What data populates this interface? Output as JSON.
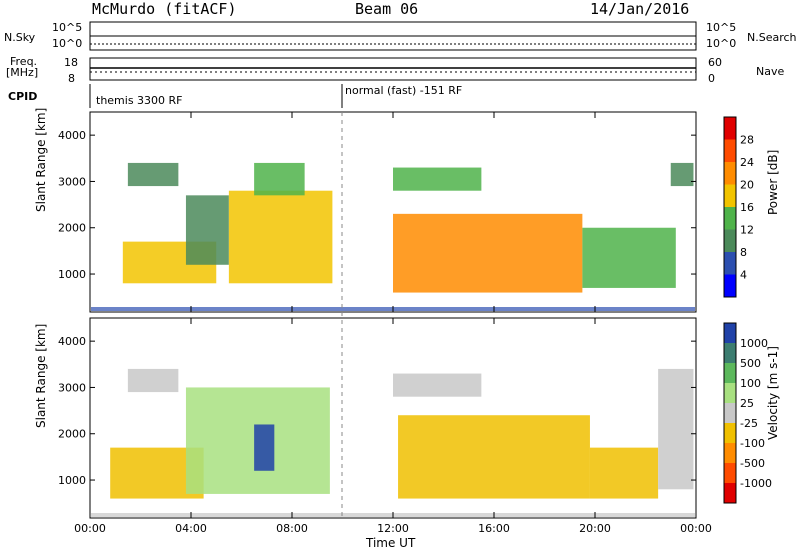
{
  "header": {
    "station": "McMurdo (fitACF)",
    "beam": "Beam 06",
    "date": "14/Jan/2016"
  },
  "top_panels": {
    "nsky_label": "N.Sky",
    "nsky_ticks": [
      "10^5",
      "10^0"
    ],
    "nsearch_label": "N.Search",
    "nsearch_ticks": [
      "10^5",
      "10^0"
    ],
    "freq_label_1": "Freq.",
    "freq_label_2": "[MHz]",
    "freq_ticks": [
      "18",
      "8"
    ],
    "nave_label": "Nave",
    "nave_ticks": [
      "60",
      "0"
    ],
    "cpid_label": "CPID",
    "cpid_segments": [
      {
        "label": "themis 3300 RF",
        "start_hour": 0
      },
      {
        "label": "normal (fast) -151 RF",
        "start_hour": 10.5
      }
    ]
  },
  "chart_data": [
    {
      "type": "heatmap",
      "title": "",
      "xlabel": "Time UT",
      "ylabel": "Slant Range [km]",
      "xlim": [
        0,
        24
      ],
      "ylim": [
        180,
        4500
      ],
      "x_ticks": [
        "00:00",
        "04:00",
        "08:00",
        "12:00",
        "16:00",
        "20:00",
        "00:00"
      ],
      "y_ticks": [
        "1000",
        "2000",
        "3000",
        "4000"
      ],
      "colorbar": {
        "label": "Power [dB]",
        "tick_labels": [
          "4",
          "8",
          "12",
          "16",
          "20",
          "24",
          "28"
        ],
        "range": [
          0,
          30
        ],
        "colors": [
          "#0000ff",
          "#2c4fb0",
          "#4b8a5a",
          "#4fb34a",
          "#f2c400",
          "#ff8c00",
          "#ff4b00",
          "#e00000"
        ]
      },
      "bands": [
        {
          "start_hour": 1.3,
          "end_hour": 5.0,
          "range_from": 800,
          "range_to": 1700,
          "level": 17
        },
        {
          "start_hour": 1.5,
          "end_hour": 3.5,
          "range_from": 2900,
          "range_to": 3400,
          "level": 8
        },
        {
          "start_hour": 3.8,
          "end_hour": 5.5,
          "range_from": 1200,
          "range_to": 2700,
          "level": 10
        },
        {
          "start_hour": 5.5,
          "end_hour": 9.6,
          "range_from": 800,
          "range_to": 2800,
          "level": 18
        },
        {
          "start_hour": 6.5,
          "end_hour": 8.5,
          "range_from": 2700,
          "range_to": 3400,
          "level": 12
        },
        {
          "start_hour": 12.0,
          "end_hour": 19.5,
          "range_from": 600,
          "range_to": 2300,
          "level": 20
        },
        {
          "start_hour": 12.0,
          "end_hour": 15.5,
          "range_from": 2800,
          "range_to": 3300,
          "level": 12
        },
        {
          "start_hour": 19.5,
          "end_hour": 23.2,
          "range_from": 700,
          "range_to": 2000,
          "level": 12
        },
        {
          "start_hour": 23.0,
          "end_hour": 23.9,
          "range_from": 2900,
          "range_to": 3400,
          "level": 10
        }
      ]
    },
    {
      "type": "heatmap",
      "title": "",
      "xlabel": "Time UT",
      "ylabel": "Slant Range [km]",
      "xlim": [
        0,
        24
      ],
      "ylim": [
        180,
        4500
      ],
      "x_ticks": [
        "00:00",
        "04:00",
        "08:00",
        "12:00",
        "16:00",
        "20:00",
        "00:00"
      ],
      "y_ticks": [
        "1000",
        "2000",
        "3000",
        "4000"
      ],
      "colorbar": {
        "label": "Velocity [m s-1]",
        "tick_labels": [
          "1000",
          "500",
          "100",
          "25",
          "-25",
          "-100",
          "-500",
          "-1000"
        ],
        "range": [
          -1000,
          1000
        ],
        "colors": [
          "#2042a8",
          "#3c7d70",
          "#5cb85c",
          "#a8e080",
          "#c8c8c8",
          "#f0c000",
          "#ff8c00",
          "#ff4b00",
          "#e00000"
        ]
      },
      "bands": [
        {
          "start_hour": 0.8,
          "end_hour": 4.5,
          "range_from": 600,
          "range_to": 1700,
          "level": -150
        },
        {
          "start_hour": 1.5,
          "end_hour": 3.5,
          "range_from": 2900,
          "range_to": 3400,
          "level": 0
        },
        {
          "start_hour": 3.8,
          "end_hour": 9.5,
          "range_from": 700,
          "range_to": 3000,
          "level": 300
        },
        {
          "start_hour": 6.5,
          "end_hour": 7.3,
          "range_from": 1200,
          "range_to": 2200,
          "level": 800
        },
        {
          "start_hour": 12.2,
          "end_hour": 19.8,
          "range_from": 600,
          "range_to": 2400,
          "level": -300
        },
        {
          "start_hour": 12.0,
          "end_hour": 15.5,
          "range_from": 2800,
          "range_to": 3300,
          "level": 0
        },
        {
          "start_hour": 19.8,
          "end_hour": 22.5,
          "range_from": 600,
          "range_to": 1700,
          "level": -200
        },
        {
          "start_hour": 22.5,
          "end_hour": 23.9,
          "range_from": 800,
          "range_to": 3400,
          "level": 0
        }
      ]
    }
  ]
}
